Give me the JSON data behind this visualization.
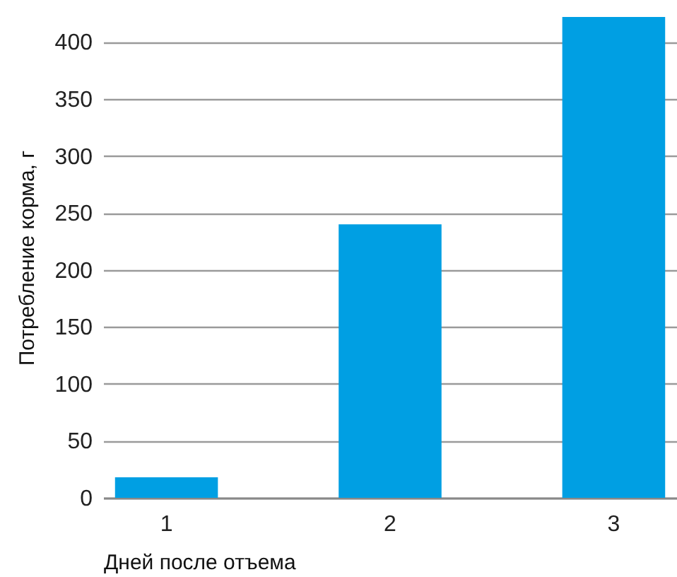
{
  "chart_data": {
    "type": "bar",
    "xlabel": "Дней после отъема",
    "ylabel": "Потребление корма, г",
    "categories": [
      "1",
      "2",
      "3"
    ],
    "values": [
      18,
      240,
      422
    ],
    "color": "#009fe3",
    "ylim": [
      0,
      422
    ],
    "yticks": [
      0,
      50,
      100,
      150,
      200,
      250,
      300,
      350,
      400
    ],
    "grid": "y"
  }
}
